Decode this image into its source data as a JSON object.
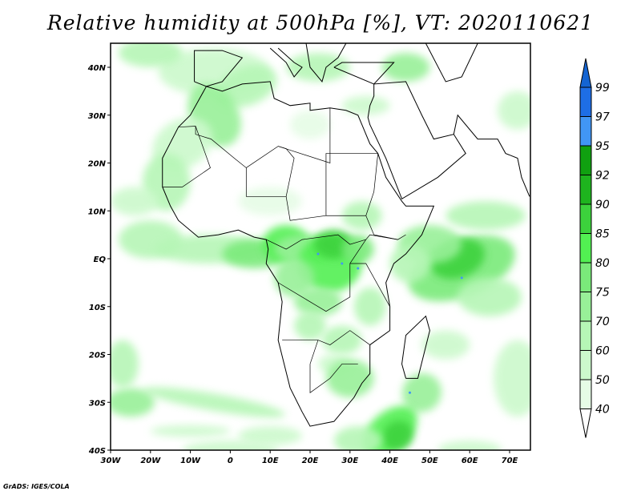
{
  "title": "Relative humidity at 500hPa [%], VT: 2020110621",
  "credit": "GrADS: IGES/COLA",
  "map": {
    "lon_range": [
      -30,
      75
    ],
    "lat_range": [
      -40,
      45
    ],
    "lon_ticks": [
      {
        "v": -30,
        "label": "30W"
      },
      {
        "v": -20,
        "label": "20W"
      },
      {
        "v": -10,
        "label": "10W"
      },
      {
        "v": 0,
        "label": "0"
      },
      {
        "v": 10,
        "label": "10E"
      },
      {
        "v": 20,
        "label": "20E"
      },
      {
        "v": 30,
        "label": "30E"
      },
      {
        "v": 40,
        "label": "40E"
      },
      {
        "v": 50,
        "label": "50E"
      },
      {
        "v": 60,
        "label": "60E"
      },
      {
        "v": 70,
        "label": "70E"
      }
    ],
    "lat_ticks": [
      {
        "v": 40,
        "label": "40N"
      },
      {
        "v": 30,
        "label": "30N"
      },
      {
        "v": 20,
        "label": "20N"
      },
      {
        "v": 10,
        "label": "10N"
      },
      {
        "v": 0,
        "label": "EQ"
      },
      {
        "v": -10,
        "label": "10S"
      },
      {
        "v": -20,
        "label": "20S"
      },
      {
        "v": -30,
        "label": "30S"
      },
      {
        "v": -40,
        "label": "40S"
      }
    ]
  },
  "colorbar": {
    "labels": [
      "40",
      "50",
      "60",
      "70",
      "75",
      "80",
      "85",
      "90",
      "92",
      "95",
      "97",
      "99"
    ],
    "colors": [
      "#e6fce6",
      "#ccf9cc",
      "#b6f6b6",
      "#98f098",
      "#7aea7a",
      "#52f052",
      "#3cd23c",
      "#1eb41e",
      "#10a010",
      "#4196f5",
      "#1e6ee6"
    ],
    "over_color": "#1464d2",
    "under_color": "#ffffff"
  }
}
